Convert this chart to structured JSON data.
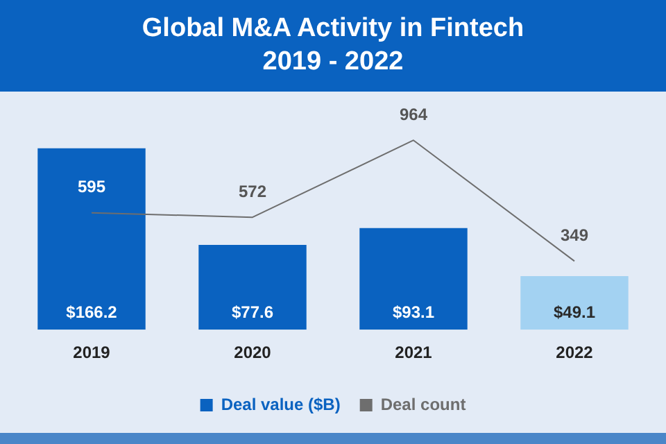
{
  "chart_data": {
    "type": "bar",
    "title": "Global M&A Activity in Fintech\n2019 - 2022",
    "categories": [
      "2019",
      "2020",
      "2021",
      "2022"
    ],
    "series": [
      {
        "name": "Deal value ($B)",
        "color": "#0a62c0",
        "colors": [
          "#0a62c0",
          "#0a62c0",
          "#0a62c0",
          "#a3d2f2"
        ],
        "values": [
          166.2,
          77.6,
          93.1,
          49.1
        ],
        "value_labels": [
          "$166.2",
          "$77.6",
          "$93.1",
          "$49.1"
        ]
      },
      {
        "name": "Deal count",
        "type": "line",
        "axis": "y2",
        "color": "#6e6e6e",
        "values": [
          595,
          572,
          964,
          349
        ],
        "value_labels": [
          "595",
          "572",
          "964",
          "349"
        ]
      }
    ],
    "legend": "bottom",
    "grid": false,
    "tick_labels": "x",
    "marker": "none"
  }
}
